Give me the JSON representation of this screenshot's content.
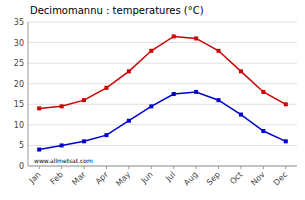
{
  "chart_data": {
    "type": "line",
    "title": "Decimomannu : temperatures (°C)",
    "categories": [
      "Jan",
      "Feb",
      "Mar",
      "Apr",
      "May",
      "Jun",
      "Jul",
      "Aug",
      "Sep",
      "Oct",
      "Nov",
      "Dec"
    ],
    "series": [
      {
        "color": "#cc0000",
        "marker": "square",
        "values": [
          14,
          14.5,
          16,
          19,
          23,
          28,
          31.5,
          31,
          28,
          23,
          18,
          15
        ]
      },
      {
        "color": "#0000cc",
        "marker": "square",
        "values": [
          4,
          5,
          6,
          7.5,
          11,
          14.5,
          17.5,
          18,
          16,
          12.5,
          8.5,
          6
        ]
      }
    ],
    "ylim": [
      0,
      35
    ],
    "yticks": [
      0,
      5,
      10,
      15,
      20,
      25,
      30,
      35
    ],
    "grid": true,
    "annotations": [
      "www.allmetsat.com"
    ]
  }
}
